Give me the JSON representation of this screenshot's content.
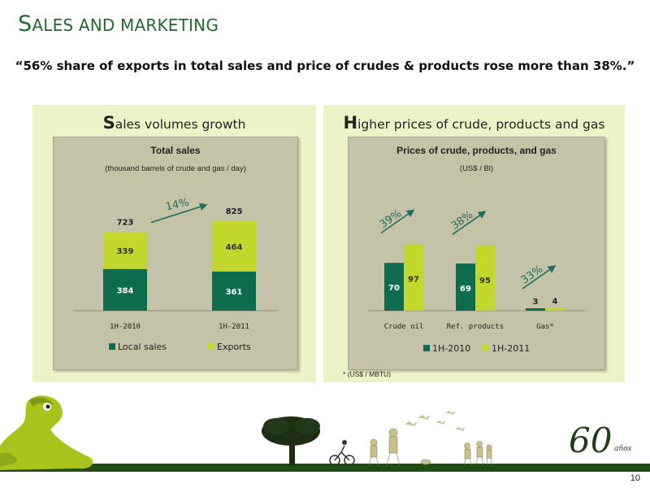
{
  "slide": {
    "title_initial": "S",
    "title_rest": "ALES AND MARKETING",
    "quote": "“56% share of exports in total sales and price of crudes & products rose more than 38%.”",
    "footnote": "* (US$ / MBTU)",
    "page_number": "10",
    "anniversary_number": "60",
    "anniversary_word": "años"
  },
  "left_panel": {
    "title_initial": "S",
    "title_rest": "ales volumes growth"
  },
  "right_panel": {
    "title_initial": "H",
    "title_rest": "igher prices of crude, products and gas"
  },
  "colors": {
    "title_green": "#1f6b2e",
    "dark_green": "#0d6b4e",
    "lime": "#c3d62b",
    "panel_bg": "#eef2c7",
    "chart_bg": "#c4c3a8",
    "arrow": "#1a6e5e"
  },
  "icons": [
    "frog-mascot-icon",
    "tree-silhouette-icon",
    "walking-people-icon",
    "birds-icon",
    "cyclist-icon"
  ],
  "chart_data": [
    {
      "type": "bar",
      "stacked": true,
      "title": "Total sales",
      "subtitle": "(thousand barrels of crude and gas / day)",
      "categories": [
        "1H-2010",
        "1H-2011"
      ],
      "series": [
        {
          "name": "Local sales",
          "values": [
            384,
            361
          ]
        },
        {
          "name": "Exports",
          "values": [
            339,
            464
          ]
        }
      ],
      "totals": [
        723,
        825
      ],
      "growth_label": "14%",
      "legend": "bottom",
      "grid": false
    },
    {
      "type": "bar",
      "stacked": false,
      "title": "Prices of crude, products, and gas",
      "subtitle": "(US$ / Bl)",
      "categories": [
        "Crude oil",
        "Ref. products",
        "Gas*"
      ],
      "series": [
        {
          "name": "1H-2010",
          "values": [
            70,
            69,
            3
          ]
        },
        {
          "name": "1H-2011",
          "values": [
            97,
            95,
            4
          ]
        }
      ],
      "growth_labels": [
        "39%",
        "38%",
        "33%"
      ],
      "legend": "bottom",
      "grid": false
    }
  ]
}
